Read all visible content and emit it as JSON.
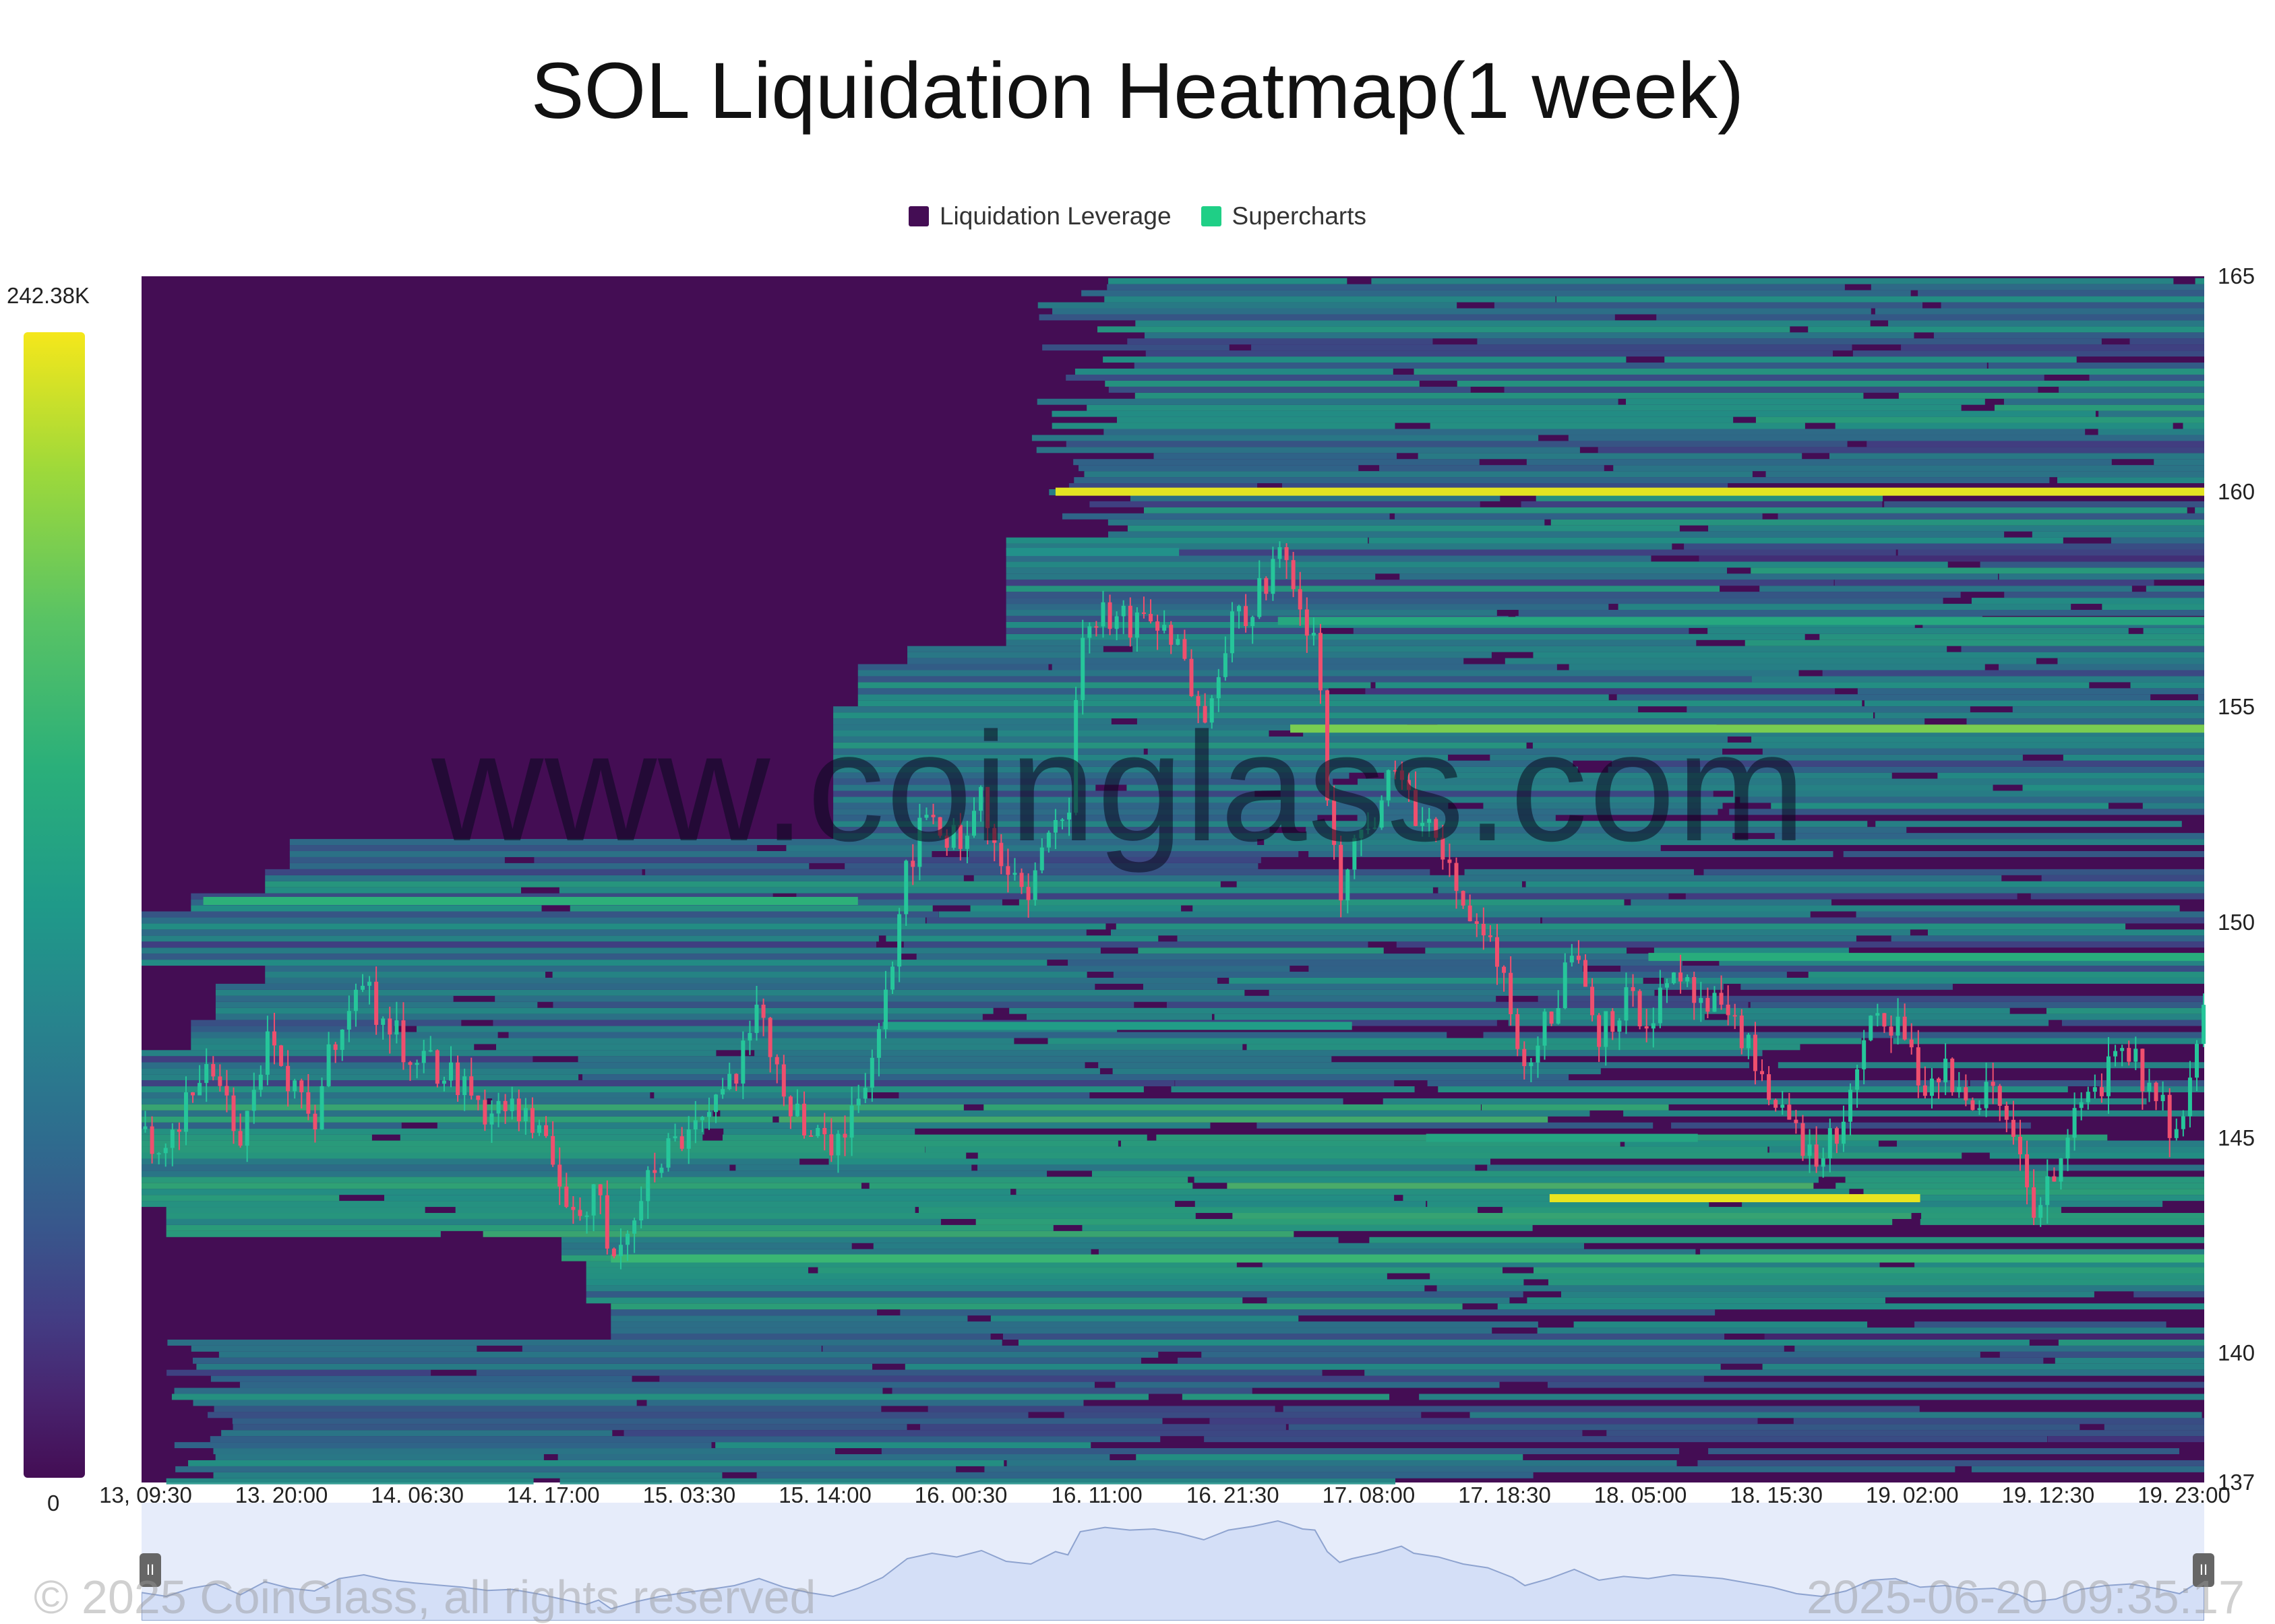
{
  "chart_data": {
    "type": "heatmap",
    "title": "SOL Liquidation Heatmap(1 week)",
    "legend": [
      {
        "name": "Liquidation Leverage",
        "color": "#440d54"
      },
      {
        "name": "Supercharts",
        "color": "#1fcf86"
      }
    ],
    "legend_placement": "top-center",
    "colorbar": {
      "max_label": "242.38K",
      "min_label": "0",
      "colors": [
        "#440d54",
        "#433d84",
        "#2e6d8e",
        "#1f9a89",
        "#2aaf7a",
        "#59c364",
        "#9ed93a",
        "#f5e71b"
      ]
    },
    "x_ticks": [
      "13, 09:30",
      "13, 20:00",
      "14, 06:30",
      "14, 17:00",
      "15, 03:30",
      "15, 14:00",
      "16, 00:30",
      "16, 11:00",
      "16, 21:30",
      "17, 08:00",
      "17, 18:30",
      "18, 05:00",
      "18, 15:30",
      "19, 02:00",
      "19, 12:30",
      "19, 23:00"
    ],
    "y_ticks": [
      "165",
      "160",
      "155",
      "150",
      "145",
      "140",
      "137"
    ],
    "ylim": [
      137,
      165
    ],
    "x_range_hours": [
      0,
      167
    ],
    "price_path": [
      [
        0,
        145.2
      ],
      [
        2,
        144.5
      ],
      [
        4,
        146.0
      ],
      [
        6,
        146.8
      ],
      [
        8,
        144.8
      ],
      [
        10,
        147.2
      ],
      [
        12,
        146.0
      ],
      [
        14,
        145.5
      ],
      [
        16,
        147.8
      ],
      [
        18,
        148.5
      ],
      [
        20,
        147.5
      ],
      [
        22,
        147.0
      ],
      [
        24,
        146.6
      ],
      [
        26,
        146.2
      ],
      [
        28,
        145.6
      ],
      [
        30,
        145.8
      ],
      [
        32,
        145.0
      ],
      [
        34,
        144.0
      ],
      [
        36,
        143.0
      ],
      [
        37,
        143.8
      ],
      [
        38,
        142.2
      ],
      [
        40,
        143.5
      ],
      [
        42,
        144.5
      ],
      [
        44,
        145.2
      ],
      [
        46,
        145.8
      ],
      [
        48,
        146.5
      ],
      [
        50,
        147.8
      ],
      [
        52,
        146.2
      ],
      [
        54,
        145.2
      ],
      [
        56,
        144.5
      ],
      [
        58,
        146.0
      ],
      [
        60,
        148.0
      ],
      [
        62,
        151.5
      ],
      [
        64,
        152.5
      ],
      [
        66,
        151.8
      ],
      [
        68,
        153.0
      ],
      [
        70,
        151.0
      ],
      [
        72,
        150.5
      ],
      [
        74,
        152.8
      ],
      [
        75,
        152.2
      ],
      [
        76,
        156.5
      ],
      [
        78,
        157.3
      ],
      [
        80,
        156.8
      ],
      [
        82,
        157.0
      ],
      [
        84,
        156.2
      ],
      [
        86,
        155.0
      ],
      [
        88,
        156.8
      ],
      [
        90,
        157.5
      ],
      [
        92,
        158.5
      ],
      [
        93,
        157.8
      ],
      [
        94,
        157.0
      ],
      [
        95,
        156.8
      ],
      [
        96,
        152.8
      ],
      [
        97,
        150.8
      ],
      [
        98,
        151.5
      ],
      [
        100,
        152.5
      ],
      [
        102,
        153.8
      ],
      [
        103,
        152.5
      ],
      [
        105,
        151.8
      ],
      [
        107,
        150.5
      ],
      [
        109,
        149.8
      ],
      [
        111,
        148.0
      ],
      [
        112,
        146.5
      ],
      [
        114,
        147.8
      ],
      [
        116,
        149.5
      ],
      [
        118,
        147.5
      ],
      [
        120,
        148.2
      ],
      [
        122,
        147.8
      ],
      [
        124,
        148.5
      ],
      [
        126,
        148.2
      ],
      [
        128,
        147.8
      ],
      [
        130,
        147.0
      ],
      [
        132,
        146.2
      ],
      [
        134,
        145.0
      ],
      [
        136,
        144.5
      ],
      [
        138,
        145.5
      ],
      [
        140,
        147.5
      ],
      [
        142,
        147.8
      ],
      [
        144,
        146.2
      ],
      [
        146,
        146.5
      ],
      [
        148,
        145.8
      ],
      [
        150,
        146.0
      ],
      [
        152,
        144.8
      ],
      [
        153,
        143.5
      ],
      [
        155,
        144.0
      ],
      [
        157,
        145.8
      ],
      [
        159,
        146.5
      ],
      [
        161,
        146.8
      ],
      [
        163,
        146.0
      ],
      [
        165,
        145.0
      ],
      [
        167,
        147.8
      ]
    ],
    "liquidation_bands": [
      {
        "price": 160.0,
        "from_hour": 74,
        "to_hour": 167,
        "intensity": 0.97
      },
      {
        "price": 154.5,
        "from_hour": 93,
        "to_hour": 167,
        "intensity": 0.78
      },
      {
        "price": 143.6,
        "from_hour": 114,
        "to_hour": 144,
        "intensity": 0.98
      },
      {
        "price": 142.2,
        "from_hour": 38,
        "to_hour": 167,
        "intensity": 0.62
      },
      {
        "price": 150.5,
        "from_hour": 5,
        "to_hour": 58,
        "intensity": 0.58
      },
      {
        "price": 147.6,
        "from_hour": 60,
        "to_hour": 98,
        "intensity": 0.45
      },
      {
        "price": 157.0,
        "from_hour": 92,
        "to_hour": 167,
        "intensity": 0.52
      },
      {
        "price": 145.0,
        "from_hour": 104,
        "to_hour": 126,
        "intensity": 0.5
      },
      {
        "price": 149.2,
        "from_hour": 122,
        "to_hour": 167,
        "intensity": 0.55
      },
      {
        "price": 158.6,
        "from_hour": 70,
        "to_hour": 84,
        "intensity": 0.4
      }
    ],
    "watermark": "www.coinglass.com",
    "copyright": "© 2025 CoinGlass, all rights reserved",
    "timestamp": "2025-06-20 09:35:17"
  }
}
